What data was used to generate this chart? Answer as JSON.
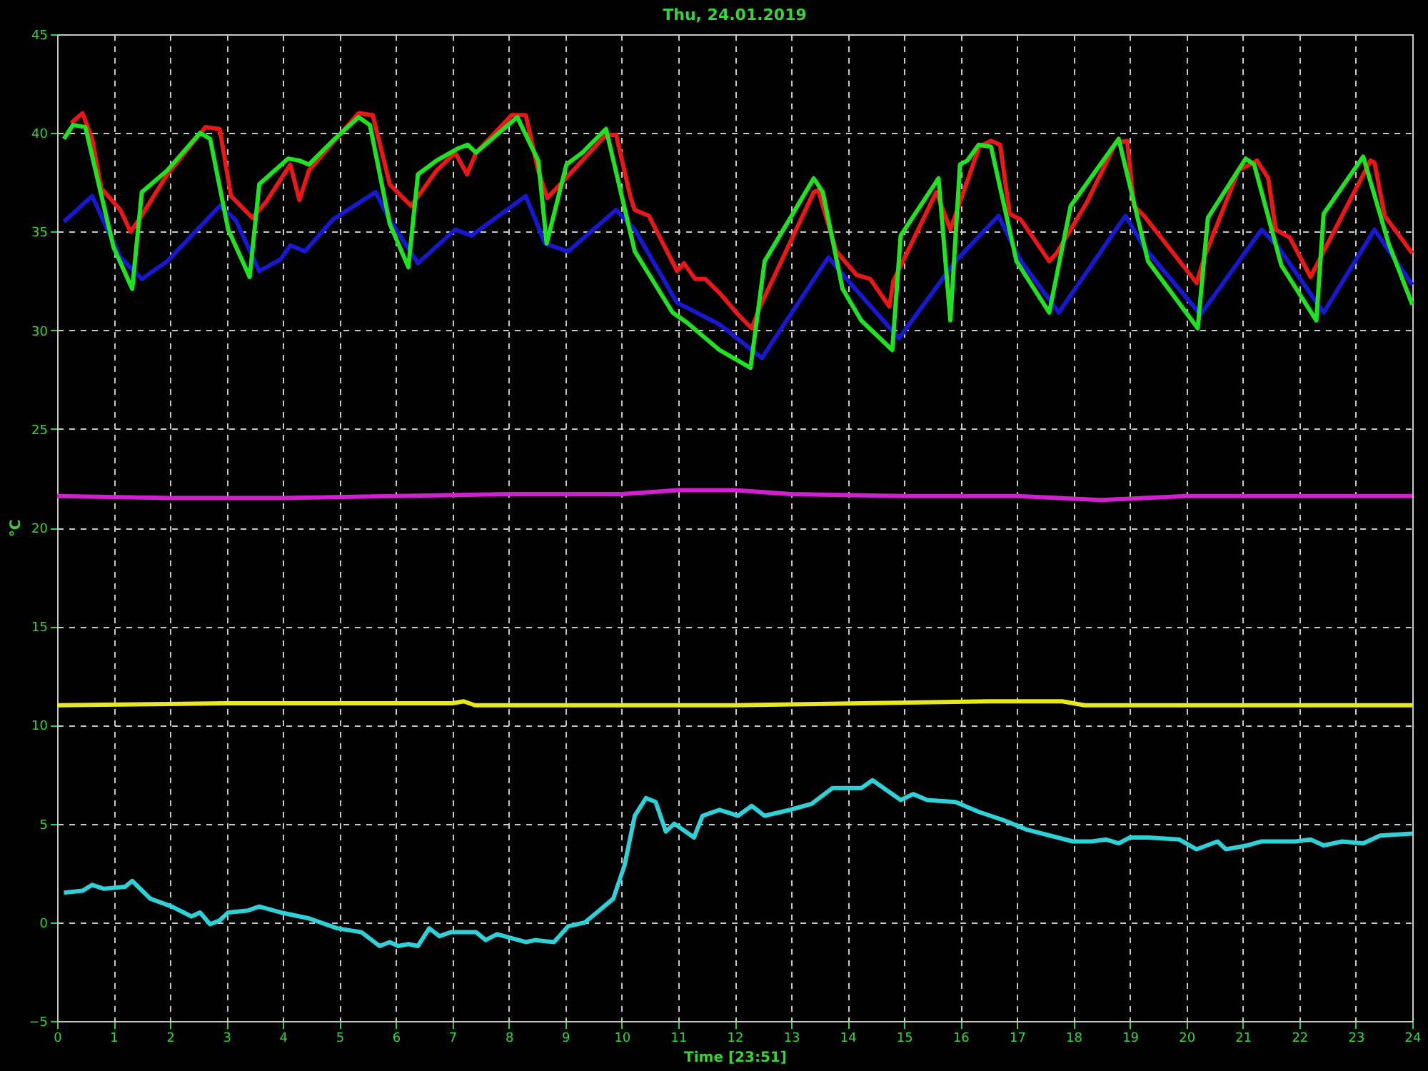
{
  "chart_data": {
    "type": "line",
    "title": "Thu, 24.01.2019",
    "xlabel": "Time [23:51]",
    "ylabel": "°C",
    "xlim": [
      0,
      24
    ],
    "xticks": [
      0,
      1,
      2,
      3,
      4,
      5,
      6,
      7,
      8,
      9,
      10,
      11,
      12,
      13,
      14,
      15,
      16,
      17,
      18,
      19,
      20,
      21,
      22,
      23,
      24
    ],
    "ylim": [
      -5,
      45
    ],
    "yticks": [
      -5,
      0,
      5,
      10,
      15,
      20,
      25,
      30,
      35,
      40,
      45
    ],
    "grid": true,
    "line_style": "solid",
    "marker": "none",
    "series": [
      {
        "color": "#e81818",
        "x": [
          0.25,
          0.45,
          0.62,
          0.78,
          1.12,
          1.3,
          1.45,
          1.95,
          2.63,
          2.88,
          3.08,
          3.46,
          3.7,
          4.13,
          4.29,
          4.46,
          4.88,
          5.34,
          5.59,
          5.89,
          6.27,
          6.72,
          7.05,
          7.26,
          7.42,
          8.05,
          8.3,
          8.52,
          8.68,
          9.01,
          9.72,
          9.9,
          10.15,
          10.23,
          10.48,
          10.98,
          11.1,
          11.3,
          11.48,
          11.73,
          12.06,
          12.3,
          12.48,
          13.4,
          13.48,
          13.8,
          14.16,
          14.4,
          14.74,
          14.81,
          15.57,
          15.82,
          15.99,
          16.33,
          16.54,
          16.7,
          16.87,
          17.07,
          17.57,
          17.7,
          18.24,
          18.75,
          18.95,
          19.07,
          19.25,
          20.18,
          20.33,
          20.92,
          21.25,
          21.45,
          21.58,
          21.83,
          22.2,
          22.43,
          23.26,
          23.33,
          23.51,
          24.0
        ],
        "values": [
          40.5,
          41.0,
          39.7,
          37.2,
          36.1,
          35.0,
          35.6,
          37.9,
          40.3,
          40.2,
          36.8,
          35.7,
          36.5,
          38.4,
          36.6,
          38.1,
          39.5,
          41.0,
          40.9,
          37.4,
          36.3,
          38.1,
          39.0,
          37.9,
          39.0,
          40.9,
          40.9,
          38.1,
          36.7,
          37.7,
          39.9,
          39.9,
          36.8,
          36.1,
          35.8,
          33.0,
          33.4,
          32.6,
          32.6,
          31.9,
          30.8,
          30.1,
          31.4,
          37.0,
          37.1,
          34.0,
          32.8,
          32.6,
          31.2,
          32.5,
          37.0,
          35.1,
          36.5,
          39.3,
          39.6,
          39.4,
          35.9,
          35.6,
          33.5,
          33.9,
          36.5,
          39.5,
          39.6,
          36.3,
          35.8,
          32.4,
          33.8,
          38.1,
          38.6,
          37.7,
          35.1,
          34.7,
          32.7,
          34.0,
          38.6,
          38.5,
          35.8,
          33.9
        ]
      },
      {
        "color": "#1818d0",
        "x": [
          0.12,
          0.62,
          1.12,
          1.5,
          1.95,
          2.88,
          3.16,
          3.58,
          3.96,
          4.13,
          4.39,
          4.88,
          5.64,
          5.89,
          6.39,
          7.05,
          7.34,
          8.3,
          8.64,
          9.05,
          9.9,
          10.23,
          10.98,
          11.73,
          12.48,
          13.66,
          13.98,
          14.91,
          15.91,
          16.67,
          17.07,
          17.74,
          18.92,
          19.25,
          20.25,
          21.33,
          21.63,
          22.43,
          23.33,
          24.0
        ],
        "values": [
          35.5,
          36.8,
          33.7,
          32.6,
          33.5,
          36.3,
          35.6,
          33.0,
          33.6,
          34.3,
          34.0,
          35.6,
          37.0,
          35.6,
          33.4,
          35.1,
          34.8,
          36.8,
          34.4,
          34.0,
          36.1,
          35.1,
          31.4,
          30.3,
          28.6,
          33.7,
          32.6,
          29.6,
          33.5,
          35.8,
          33.5,
          30.9,
          35.8,
          34.2,
          30.8,
          35.1,
          34.2,
          30.9,
          35.1,
          32.3
        ]
      },
      {
        "color": "#22e022",
        "x": [
          0.12,
          0.28,
          0.5,
          1.0,
          1.33,
          1.5,
          1.95,
          2.53,
          2.71,
          3.03,
          3.41,
          3.58,
          4.09,
          4.29,
          4.46,
          4.88,
          5.34,
          5.54,
          5.89,
          6.22,
          6.39,
          6.72,
          7.09,
          7.27,
          7.42,
          8.15,
          8.52,
          8.67,
          9.02,
          9.3,
          9.72,
          10.23,
          10.9,
          11.15,
          11.73,
          12.28,
          12.53,
          13.4,
          13.56,
          13.91,
          14.24,
          14.79,
          14.94,
          15.61,
          15.82,
          15.99,
          16.12,
          16.32,
          16.54,
          16.99,
          17.57,
          17.95,
          18.8,
          19.32,
          20.2,
          20.38,
          21.05,
          21.2,
          21.68,
          22.3,
          22.43,
          23.13,
          23.58,
          24.0
        ],
        "values": [
          39.7,
          40.4,
          40.3,
          34.2,
          32.1,
          37.0,
          38.1,
          40.0,
          39.7,
          35.1,
          32.7,
          37.4,
          38.7,
          38.6,
          38.4,
          39.6,
          40.8,
          40.4,
          35.4,
          33.2,
          37.9,
          38.6,
          39.2,
          39.4,
          39.0,
          40.8,
          38.6,
          34.4,
          38.4,
          39.0,
          40.2,
          34.0,
          30.9,
          30.4,
          29.0,
          28.1,
          33.5,
          37.7,
          37.0,
          32.1,
          30.5,
          29.0,
          34.8,
          37.7,
          30.5,
          38.4,
          38.6,
          39.4,
          39.3,
          33.5,
          30.9,
          36.3,
          39.7,
          33.5,
          30.1,
          35.7,
          38.7,
          38.4,
          33.3,
          30.5,
          35.9,
          38.8,
          34.4,
          31.3
        ]
      },
      {
        "color": "#d020d0",
        "x": [
          0,
          2,
          4,
          6,
          8,
          10,
          11,
          12,
          13,
          15,
          17,
          18.5,
          20,
          22,
          24
        ],
        "values": [
          21.6,
          21.5,
          21.5,
          21.6,
          21.7,
          21.7,
          21.9,
          21.9,
          21.7,
          21.6,
          21.6,
          21.4,
          21.6,
          21.6,
          21.6
        ]
      },
      {
        "color": "#e8e820",
        "x": [
          0,
          3,
          7,
          7.2,
          7.4,
          12,
          16.5,
          17.8,
          18.2,
          24
        ],
        "values": [
          11.0,
          11.1,
          11.1,
          11.2,
          11.0,
          11.0,
          11.2,
          11.2,
          11.0,
          11.0
        ]
      },
      {
        "color": "#30d0d8",
        "x": [
          0.12,
          0.45,
          0.62,
          0.83,
          1.2,
          1.33,
          1.65,
          2.03,
          2.38,
          2.53,
          2.71,
          2.88,
          3.03,
          3.38,
          3.58,
          3.96,
          4.46,
          4.96,
          5.39,
          5.71,
          5.89,
          6.04,
          6.22,
          6.39,
          6.59,
          6.77,
          6.97,
          7.42,
          7.59,
          7.79,
          8.3,
          8.47,
          8.8,
          9.05,
          9.35,
          9.6,
          9.85,
          10.05,
          10.23,
          10.43,
          10.6,
          10.78,
          10.93,
          11.28,
          11.43,
          11.73,
          12.06,
          12.3,
          12.53,
          12.98,
          13.36,
          13.73,
          14.24,
          14.44,
          14.94,
          15.16,
          15.41,
          15.91,
          16.32,
          16.74,
          17.17,
          17.99,
          18.32,
          18.57,
          18.8,
          19.0,
          19.32,
          19.87,
          20.18,
          20.55,
          20.7,
          21.08,
          21.33,
          21.93,
          22.2,
          22.43,
          22.76,
          23.13,
          23.43,
          24.0
        ],
        "values": [
          1.5,
          1.6,
          1.9,
          1.7,
          1.8,
          2.1,
          1.2,
          0.8,
          0.3,
          0.5,
          -0.1,
          0.1,
          0.5,
          0.6,
          0.8,
          0.5,
          0.2,
          -0.3,
          -0.5,
          -1.2,
          -1.0,
          -1.2,
          -1.1,
          -1.2,
          -0.3,
          -0.7,
          -0.5,
          -0.5,
          -0.9,
          -0.6,
          -1.0,
          -0.9,
          -1.0,
          -0.2,
          0.0,
          0.6,
          1.2,
          2.9,
          5.4,
          6.3,
          6.1,
          4.6,
          5.0,
          4.3,
          5.4,
          5.7,
          5.4,
          5.9,
          5.4,
          5.7,
          6.0,
          6.8,
          6.8,
          7.2,
          6.2,
          6.5,
          6.2,
          6.1,
          5.6,
          5.2,
          4.7,
          4.1,
          4.1,
          4.2,
          4.0,
          4.3,
          4.3,
          4.2,
          3.7,
          4.1,
          3.7,
          3.9,
          4.1,
          4.1,
          4.2,
          3.9,
          4.1,
          4.0,
          4.4,
          4.5
        ]
      }
    ]
  }
}
